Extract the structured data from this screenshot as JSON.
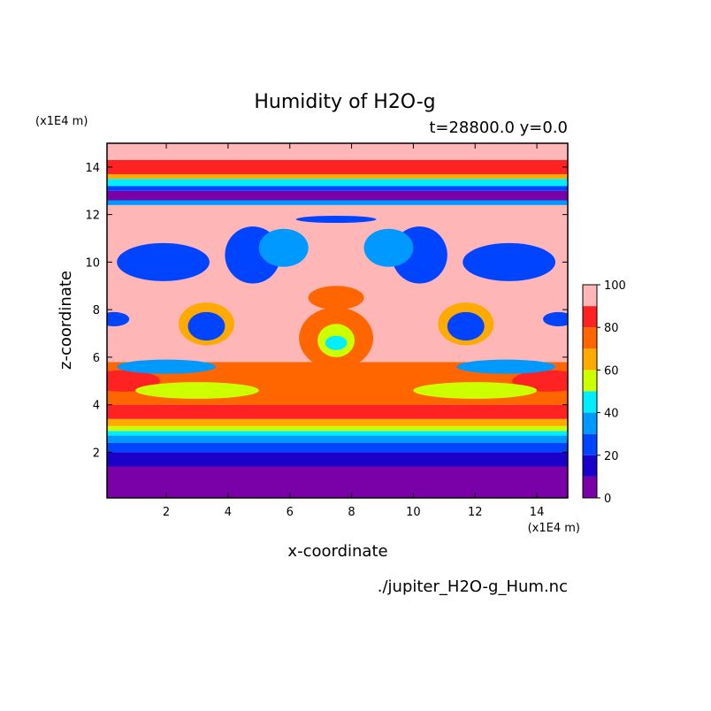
{
  "chart_data": {
    "type": "heatmap",
    "title": "Humidity of H2O-g",
    "subtitle": "t=28800.0 y=0.0",
    "xlabel": "x-coordinate",
    "ylabel": "z-coordinate",
    "x_unit_label": "(x1E4 m)",
    "y_unit_label": "(x1E4 m)",
    "xlim": [
      0.08,
      15.0
    ],
    "ylim": [
      0.08,
      15.0
    ],
    "x_ticks": [
      2,
      4,
      6,
      8,
      10,
      12,
      14
    ],
    "y_ticks": [
      2,
      4,
      6,
      8,
      10,
      12,
      14
    ],
    "colorbar": {
      "range": [
        0,
        100
      ],
      "ticks": [
        0,
        20,
        40,
        60,
        80,
        100
      ],
      "levels": [
        {
          "from": 0,
          "to": 10,
          "color": "#7a00a8"
        },
        {
          "from": 10,
          "to": 20,
          "color": "#1a00c8"
        },
        {
          "from": 20,
          "to": 30,
          "color": "#0044ff"
        },
        {
          "from": 30,
          "to": 40,
          "color": "#0099ff"
        },
        {
          "from": 40,
          "to": 50,
          "color": "#00eeff"
        },
        {
          "from": 50,
          "to": 60,
          "color": "#ccff00"
        },
        {
          "from": 60,
          "to": 70,
          "color": "#ffaa00"
        },
        {
          "from": 70,
          "to": 80,
          "color": "#ff6600"
        },
        {
          "from": 80,
          "to": 90,
          "color": "#ff2222"
        },
        {
          "from": 90,
          "to": 100,
          "color": "#ffb6b6"
        }
      ]
    },
    "horizontal_bands": [
      {
        "z0": 0.08,
        "z1": 1.4,
        "value": 5
      },
      {
        "z0": 1.4,
        "z1": 2.0,
        "value": 15
      },
      {
        "z0": 2.0,
        "z1": 2.4,
        "value": 25
      },
      {
        "z0": 2.4,
        "z1": 2.7,
        "value": 35
      },
      {
        "z0": 2.7,
        "z1": 2.9,
        "value": 45
      },
      {
        "z0": 2.9,
        "z1": 3.1,
        "value": 55
      },
      {
        "z0": 3.1,
        "z1": 3.4,
        "value": 65
      },
      {
        "z0": 3.4,
        "z1": 4.0,
        "value": 85
      },
      {
        "z0": 4.0,
        "z1": 5.8,
        "value": 75
      },
      {
        "z0": 5.8,
        "z1": 12.4,
        "value": 95
      },
      {
        "z0": 12.4,
        "z1": 12.6,
        "value": 35
      },
      {
        "z0": 12.6,
        "z1": 13.0,
        "value": 5
      },
      {
        "z0": 13.0,
        "z1": 13.2,
        "value": 25
      },
      {
        "z0": 13.2,
        "z1": 13.5,
        "value": 45
      },
      {
        "z0": 13.5,
        "z1": 13.7,
        "value": 65
      },
      {
        "z0": 13.7,
        "z1": 14.3,
        "value": 85
      },
      {
        "z0": 14.3,
        "z1": 15.0,
        "value": 95
      }
    ],
    "features": [
      {
        "x": 0.6,
        "z": 5.0,
        "rx": 1.2,
        "rz": 0.45,
        "value": 85
      },
      {
        "x": 14.4,
        "z": 5.0,
        "rx": 1.2,
        "rz": 0.45,
        "value": 85
      },
      {
        "x": 3.0,
        "z": 4.6,
        "rx": 2.0,
        "rz": 0.35,
        "value": 55
      },
      {
        "x": 12.0,
        "z": 4.6,
        "rx": 2.0,
        "rz": 0.35,
        "value": 55
      },
      {
        "x": 2.0,
        "z": 5.6,
        "rx": 1.6,
        "rz": 0.3,
        "value": 35
      },
      {
        "x": 13.0,
        "z": 5.6,
        "rx": 1.6,
        "rz": 0.3,
        "value": 35
      },
      {
        "x": 7.5,
        "z": 6.8,
        "rx": 1.2,
        "rz": 1.3,
        "value": 75
      },
      {
        "x": 7.5,
        "z": 6.7,
        "rx": 0.6,
        "rz": 0.7,
        "value": 55
      },
      {
        "x": 7.5,
        "z": 6.6,
        "rx": 0.35,
        "rz": 0.3,
        "value": 45
      },
      {
        "x": 3.3,
        "z": 7.4,
        "rx": 0.9,
        "rz": 0.9,
        "value": 65
      },
      {
        "x": 11.7,
        "z": 7.4,
        "rx": 0.9,
        "rz": 0.9,
        "value": 65
      },
      {
        "x": 3.3,
        "z": 7.3,
        "rx": 0.6,
        "rz": 0.6,
        "value": 25
      },
      {
        "x": 11.7,
        "z": 7.3,
        "rx": 0.6,
        "rz": 0.6,
        "value": 25
      },
      {
        "x": 0.3,
        "z": 7.6,
        "rx": 0.5,
        "rz": 0.3,
        "value": 25
      },
      {
        "x": 14.7,
        "z": 7.6,
        "rx": 0.5,
        "rz": 0.3,
        "value": 25
      },
      {
        "x": 1.9,
        "z": 10.0,
        "rx": 1.5,
        "rz": 0.8,
        "value": 25
      },
      {
        "x": 13.1,
        "z": 10.0,
        "rx": 1.5,
        "rz": 0.8,
        "value": 25
      },
      {
        "x": 4.8,
        "z": 10.3,
        "rx": 0.9,
        "rz": 1.2,
        "value": 25
      },
      {
        "x": 10.2,
        "z": 10.3,
        "rx": 0.9,
        "rz": 1.2,
        "value": 25
      },
      {
        "x": 5.8,
        "z": 10.6,
        "rx": 0.8,
        "rz": 0.8,
        "value": 35
      },
      {
        "x": 9.2,
        "z": 10.6,
        "rx": 0.8,
        "rz": 0.8,
        "value": 35
      },
      {
        "x": 7.5,
        "z": 11.8,
        "rx": 1.3,
        "rz": 0.15,
        "value": 25
      },
      {
        "x": 7.5,
        "z": 8.5,
        "rx": 0.9,
        "rz": 0.5,
        "value": 75
      }
    ],
    "source_file": "./jupiter_H2O-g_Hum.nc"
  }
}
